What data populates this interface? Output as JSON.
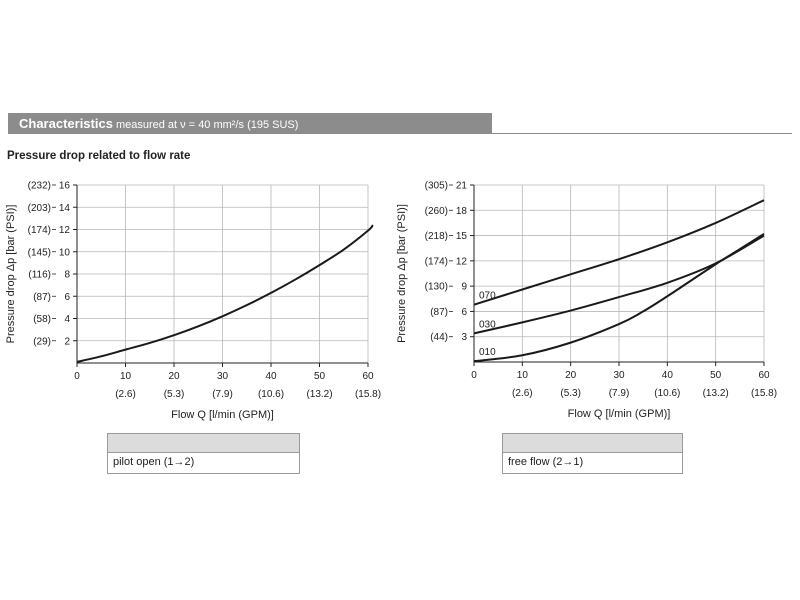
{
  "header": {
    "title": "Characteristics",
    "subtitle": "measured at ν = 40 mm²/s (195 SUS)"
  },
  "section_title": "Pressure drop related to flow rate",
  "legends": [
    {
      "label": "pilot open (1→2)"
    },
    {
      "label": "free flow (2→1)"
    }
  ],
  "chart_data": [
    {
      "type": "line",
      "xlabel": "Flow Q [l/min (GPM)]",
      "ylabel": "Pressure drop Δp [bar (PSI)]",
      "xlim": [
        0,
        60
      ],
      "ylim": [
        0,
        16
      ],
      "x_ticks": [
        "0",
        "10",
        "20",
        "30",
        "40",
        "50",
        "60"
      ],
      "x_ticks_secondary": [
        "(2.6)",
        "(5.3)",
        "(7.9)",
        "(10.6)",
        "(13.2)",
        "(15.8)"
      ],
      "y_ticks": [
        "2",
        "4",
        "6",
        "8",
        "10",
        "12",
        "14",
        "16"
      ],
      "y_ticks_secondary": [
        "(29)",
        "(58)",
        "(87)",
        "(116)",
        "(145)",
        "(174)",
        "(203)",
        "(232)"
      ],
      "grid": true,
      "series": [
        {
          "name": "",
          "x": [
            0,
            5,
            10,
            15,
            20,
            25,
            30,
            35,
            40,
            45,
            50,
            55,
            60,
            61
          ],
          "values": [
            0.1,
            0.6,
            1.2,
            1.8,
            2.5,
            3.3,
            4.2,
            5.2,
            6.3,
            7.5,
            8.8,
            10.2,
            11.9,
            12.4
          ]
        }
      ]
    },
    {
      "type": "line",
      "xlabel": "Flow Q [l/min (GPM)]",
      "ylabel": "Pressure drop Δp [bar (PSI)]",
      "xlim": [
        0,
        60
      ],
      "ylim": [
        0,
        21
      ],
      "x_ticks": [
        "0",
        "10",
        "20",
        "30",
        "40",
        "50",
        "60"
      ],
      "x_ticks_secondary": [
        "(2.6)",
        "(5.3)",
        "(7.9)",
        "(10.6)",
        "(13.2)",
        "(15.8)"
      ],
      "y_ticks": [
        "3",
        "6",
        "9",
        "12",
        "15",
        "18",
        "21"
      ],
      "y_ticks_secondary": [
        "(44)",
        "(87)",
        "(130)",
        "(174)",
        "(218)",
        "(260)",
        "(305)"
      ],
      "grid": true,
      "series": [
        {
          "name": "070",
          "x": [
            0,
            10,
            20,
            30,
            40,
            50,
            60
          ],
          "values": [
            6.8,
            8.6,
            10.4,
            12.2,
            14.2,
            16.5,
            19.2
          ]
        },
        {
          "name": "030",
          "x": [
            0,
            10,
            20,
            30,
            40,
            50,
            60
          ],
          "values": [
            3.4,
            4.7,
            6.1,
            7.7,
            9.4,
            11.7,
            15.0
          ]
        },
        {
          "name": "010",
          "x": [
            0,
            10,
            20,
            30,
            35,
            40,
            45,
            50,
            55,
            60
          ],
          "values": [
            0.1,
            0.8,
            2.3,
            4.5,
            6.0,
            7.8,
            9.7,
            11.6,
            13.4,
            15.2
          ]
        }
      ]
    }
  ]
}
